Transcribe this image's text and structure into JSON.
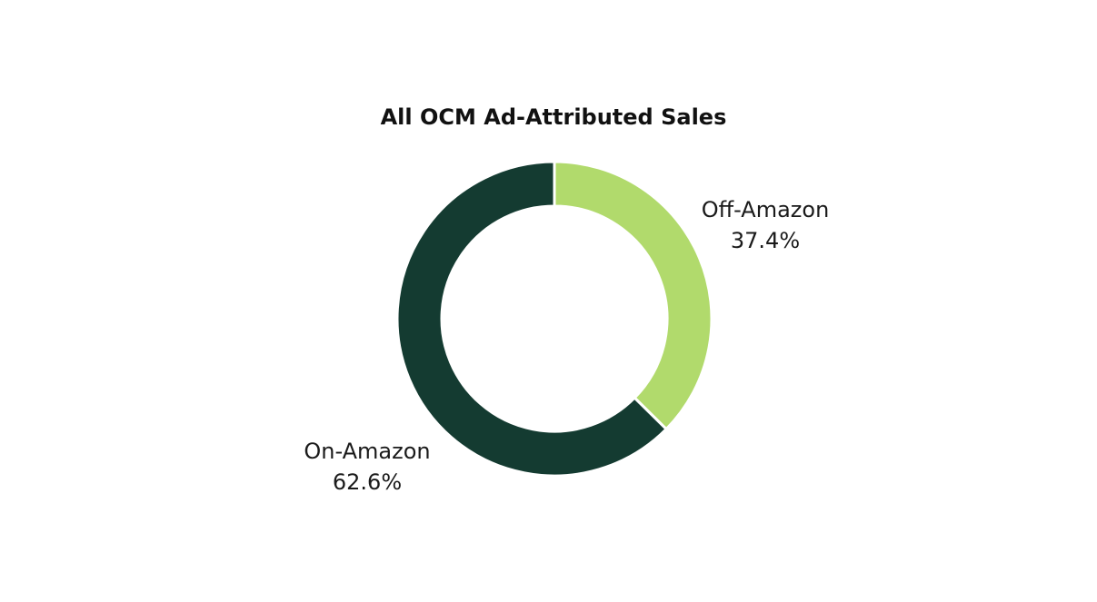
{
  "chart_data": {
    "type": "pie",
    "variant": "donut",
    "title": "All OCM Ad-Attributed Sales",
    "slices": [
      {
        "label": "Off-Amazon",
        "value": 37.4,
        "value_label": "37.4%",
        "color": "#b1da6c"
      },
      {
        "label": "On-Amazon",
        "value": 62.6,
        "value_label": "62.6%",
        "color": "#143b31"
      }
    ],
    "start_angle": "12 o'clock",
    "direction": "clockwise",
    "legend": "none",
    "separator_color": "#ffffff"
  }
}
